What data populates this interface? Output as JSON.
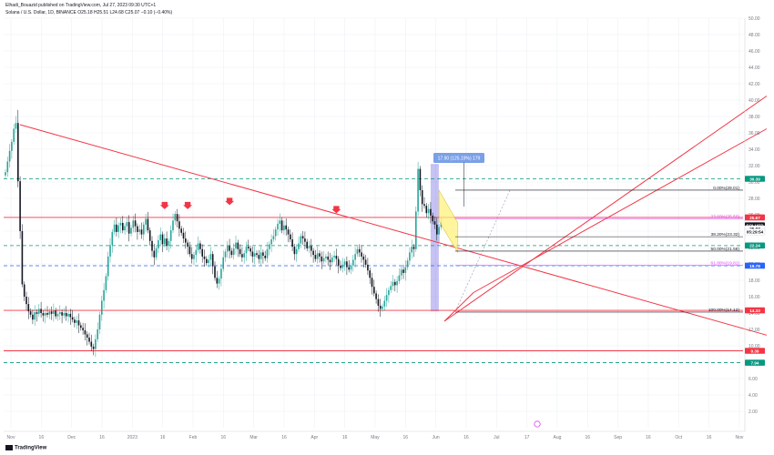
{
  "header": {
    "publisher": "Elhadi_Bouazid published on TradingView.com, Jul 27, 2023 09:30 UTC+1",
    "symbol_line": "Solana / U.S. Dollar, 1D, BINANCE  O25.18  H25.51  L24.68  C25.07  −0.10 (−0.40%)"
  },
  "footer": {
    "logo": "TradingView"
  },
  "colors": {
    "up": "#26a69a",
    "down": "#131722",
    "red_line": "#f23645",
    "teal_dash": "#089981",
    "blue_dash": "#2962ff",
    "fib_pink": "#e040fb",
    "flag_fill": "#fff176",
    "measure": "#5b4fe0",
    "grid": "#eef0f4"
  },
  "chart_data": {
    "type": "candlestick",
    "x_ticks": [
      "Nov",
      "16",
      "Dec",
      "16",
      "2023",
      "16",
      "Feb",
      "16",
      "Mar",
      "16",
      "Apr",
      "16",
      "May",
      "16",
      "Jun",
      "16",
      "Jul",
      "17",
      "Aug",
      "16",
      "Sep",
      "16",
      "Oct",
      "16",
      "Nov"
    ],
    "y_range": [
      0,
      50
    ],
    "y_ticks": [
      "50.00",
      "48.00",
      "46.00",
      "44.00",
      "42.00",
      "40.00",
      "38.00",
      "36.00",
      "34.00",
      "32.00",
      "30.00",
      "28.00",
      "26.00",
      "24.00",
      "22.00",
      "20.00",
      "18.00",
      "16.00",
      "14.00",
      "12.00",
      "10.00",
      "8.00",
      "6.00",
      "4.00",
      "2.00"
    ],
    "price_tags": [
      {
        "label": "30.39",
        "value": 30.39,
        "color": "#089981"
      },
      {
        "label": "25.67",
        "value": 25.67,
        "color": "#f23645"
      },
      {
        "label": "SOLUSD",
        "value": 24.7,
        "color": "#131722"
      },
      {
        "label": "25.07",
        "value": 24.3,
        "color": "#ffffff"
      },
      {
        "label": "05:29:54",
        "value": 23.9,
        "color": "#ffffff"
      },
      {
        "label": "22.24",
        "value": 22.24,
        "color": "#089981"
      },
      {
        "label": "19.78",
        "value": 19.78,
        "color": "#2962ff"
      },
      {
        "label": "14.33",
        "value": 14.33,
        "color": "#f23645"
      },
      {
        "label": "9.39",
        "value": 9.39,
        "color": "#f23645"
      },
      {
        "label": "7.94",
        "value": 7.94,
        "color": "#089981"
      }
    ],
    "fib_levels": [
      {
        "label": "0.00%(29.01)",
        "value": 29.01,
        "color": "#131722"
      },
      {
        "label": "23.60%(25.50)",
        "value": 25.5,
        "color": "#e040fb"
      },
      {
        "label": "38.20%(23.32)",
        "value": 23.32,
        "color": "#131722"
      },
      {
        "label": "50.00%(21.56)",
        "value": 21.56,
        "color": "#131722"
      },
      {
        "label": "61.80%(19.81)",
        "value": 19.81,
        "color": "#e040fb"
      },
      {
        "label": "100.00%(14.12)",
        "value": 14.12,
        "color": "#131722"
      }
    ],
    "horizontal_lines": [
      {
        "value": 30.39,
        "style": "dash",
        "color": "#089981"
      },
      {
        "value": 25.67,
        "style": "solid",
        "color": "#f23645"
      },
      {
        "value": 22.24,
        "style": "dash",
        "color": "#089981"
      },
      {
        "value": 19.78,
        "style": "dash",
        "color": "#2962ff"
      },
      {
        "value": 14.33,
        "style": "solid",
        "color": "#f23645"
      },
      {
        "value": 9.39,
        "style": "solid",
        "color": "#f23645"
      },
      {
        "value": 7.94,
        "style": "dash",
        "color": "#089981"
      }
    ],
    "measure_label": "17.90 (125.19%) 179",
    "annotations": [
      "4 red down arrows at resistance ~25.6",
      "yellow bull flag Jul 17-Aug 1",
      "ascending red channel from mid-June",
      "descending red trendline from early Nov 2022"
    ],
    "closes": [
      31.2,
      32.5,
      33.8,
      34.9,
      36.5,
      37.2,
      30.1,
      24.0,
      17.5,
      16.0,
      15.1,
      14.2,
      13.8,
      13.2,
      14.1,
      13.9,
      14.5,
      14.0,
      13.7,
      14.0,
      13.8,
      14.2,
      13.9,
      14.3,
      13.6,
      13.9,
      14.1,
      13.7,
      14.0,
      13.6,
      13.9,
      13.5,
      13.2,
      12.8,
      13.1,
      12.5,
      12.2,
      11.9,
      11.4,
      11.0,
      10.5,
      9.9,
      9.6,
      10.8,
      12.0,
      13.8,
      15.5,
      16.8,
      18.5,
      20.9,
      22.3,
      23.9,
      24.8,
      23.9,
      24.7,
      25.0,
      24.1,
      24.6,
      25.1,
      23.7,
      24.4,
      25.3,
      24.6,
      23.9,
      24.2,
      23.6,
      24.8,
      25.5,
      24.1,
      22.8,
      21.6,
      20.8,
      21.9,
      22.9,
      23.6,
      22.4,
      23.1,
      22.2,
      22.8,
      24.1,
      25.3,
      26.1,
      25.2,
      24.3,
      23.8,
      23.1,
      22.6,
      22.1,
      21.2,
      20.6,
      21.1,
      21.7,
      22.5,
      21.8,
      20.9,
      20.6,
      20.1,
      20.5,
      21.2,
      19.7,
      18.3,
      17.6,
      18.2,
      19.4,
      20.8,
      21.5,
      22.2,
      21.6,
      21.1,
      21.9,
      22.6,
      21.8,
      21.2,
      20.8,
      21.3,
      22.1,
      21.9,
      21.5,
      20.9,
      21.3,
      21.1,
      20.6,
      21.4,
      21.0,
      20.7,
      21.8,
      22.4,
      23.0,
      23.4,
      24.2,
      24.9,
      25.3,
      24.1,
      24.7,
      24.2,
      23.6,
      23.0,
      22.1,
      21.2,
      21.8,
      22.5,
      23.4,
      23.1,
      22.7,
      21.9,
      22.2,
      21.6,
      21.1,
      20.6,
      21.3,
      20.9,
      20.3,
      20.7,
      20.9,
      20.5,
      20.2,
      20.8,
      21.0,
      20.6,
      19.8,
      19.5,
      19.9,
      20.3,
      19.6,
      19.3,
      19.8,
      20.5,
      21.2,
      21.8,
      21.4,
      20.9,
      20.5,
      19.9,
      19.2,
      18.3,
      17.2,
      16.4,
      15.7,
      14.9,
      14.5,
      14.8,
      15.5,
      16.2,
      16.8,
      17.3,
      17.8,
      17.4,
      17.9,
      18.6,
      19.3,
      18.9,
      19.6,
      20.4,
      21.4,
      22.1,
      21.8,
      26.4,
      31.6,
      29.0,
      27.3,
      27.1,
      26.2,
      26.7,
      25.9,
      25.2,
      24.8,
      23.6,
      24.5,
      25.07
    ]
  }
}
